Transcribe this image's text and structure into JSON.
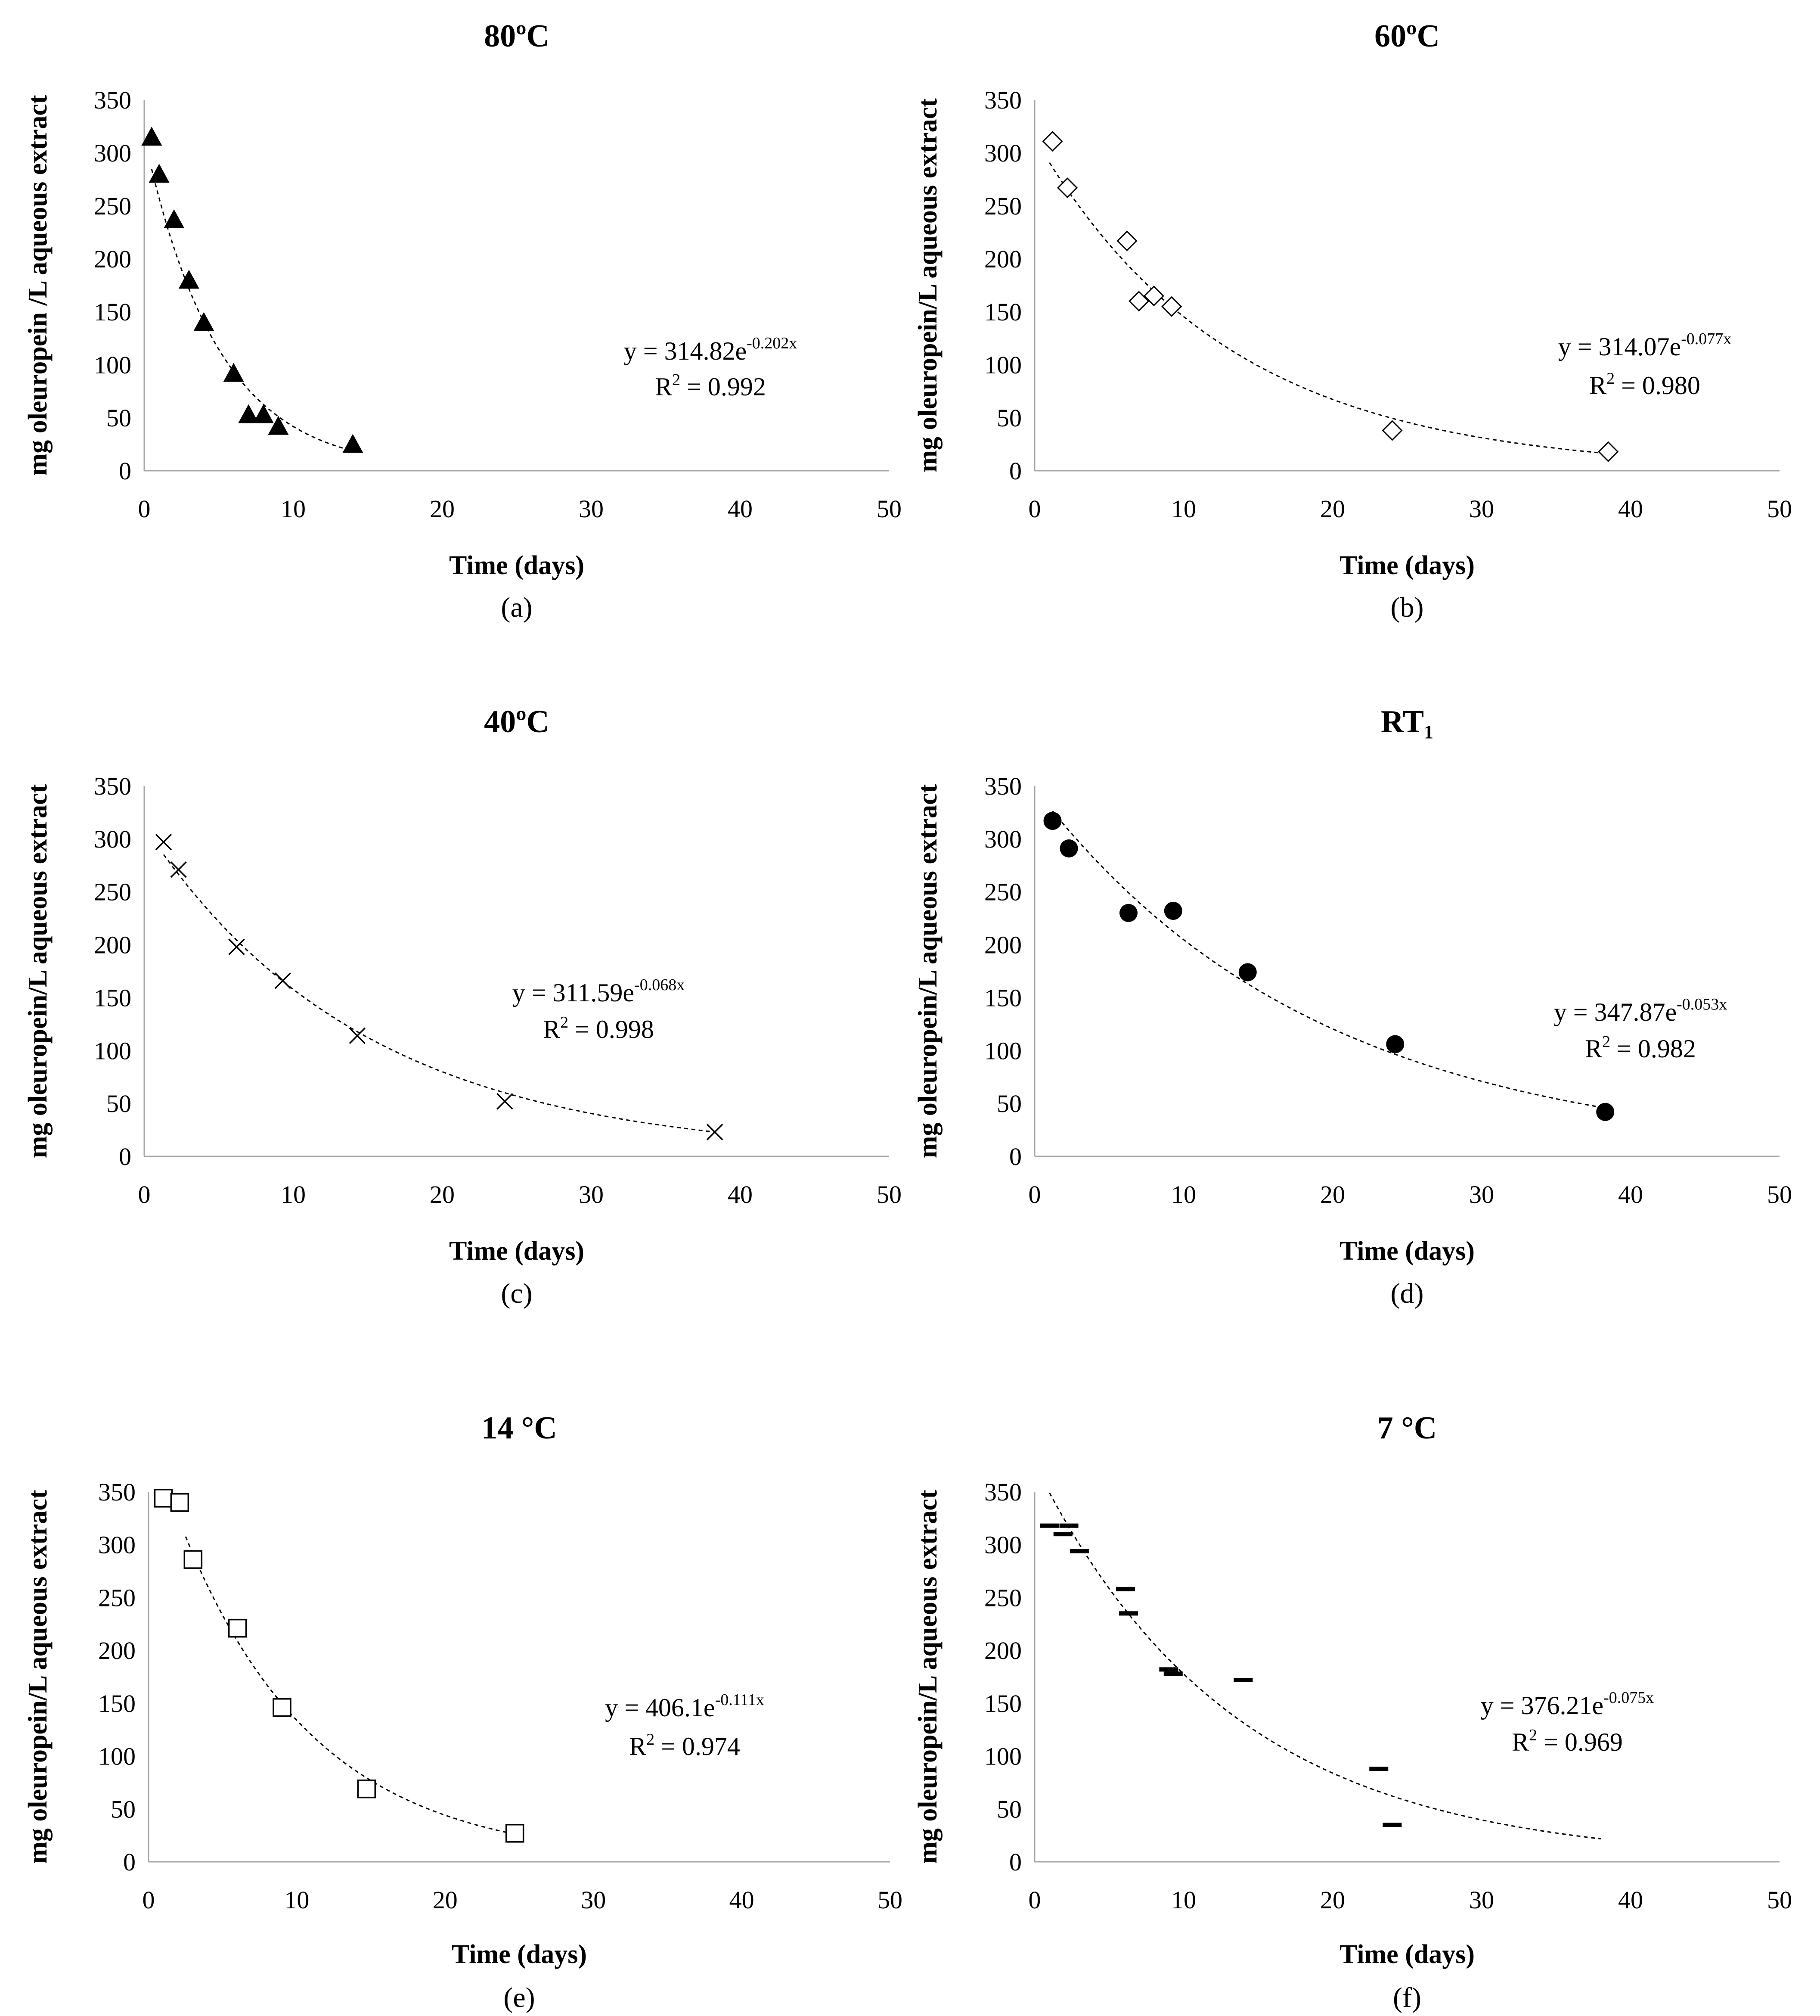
{
  "chart_data": [
    {
      "type": "scatter",
      "title": "80ºC",
      "panel_label": "(a)",
      "xlabel": "Time (days)",
      "ylabel": "mg oleuropein /L aqueous extract",
      "xlim": [
        0,
        50
      ],
      "ylim": [
        0,
        350
      ],
      "xticks": [
        "0",
        "10",
        "20",
        "30",
        "40",
        "50"
      ],
      "yticks": [
        "0",
        "50",
        "100",
        "150",
        "200",
        "250",
        "300",
        "350"
      ],
      "marker": "filled-triangle",
      "series": [
        {
          "x": [
            0.5,
            1,
            2,
            3,
            4,
            6,
            7,
            8,
            9,
            14
          ],
          "y": [
            315,
            280,
            237,
            180,
            140,
            92,
            53,
            53,
            42,
            25
          ]
        }
      ],
      "trendline": {
        "type": "exponential",
        "a": 314.82,
        "b": -0.202,
        "x_range": [
          0.5,
          14
        ]
      },
      "equation": {
        "lead": "y = 314.82e",
        "exp": "-0.202x",
        "r2_lead": "R",
        "r2_sup": "2",
        "r2_value": " = 0.992"
      }
    },
    {
      "type": "scatter",
      "title": "60ºC",
      "panel_label": "(b)",
      "xlabel": "Time (days)",
      "ylabel": "mg oleuropein/L aqueous extract",
      "xlim": [
        0,
        50
      ],
      "ylim": [
        0,
        350
      ],
      "xticks": [
        "0",
        "10",
        "20",
        "30",
        "40",
        "50"
      ],
      "yticks": [
        "0",
        "50",
        "100",
        "150",
        "200",
        "250",
        "300",
        "350"
      ],
      "marker": "open-diamond",
      "series": [
        {
          "x": [
            1.2,
            2.2,
            6.2,
            7,
            8,
            9.2,
            24,
            38.5
          ],
          "y": [
            311,
            267,
            217,
            160,
            165,
            155,
            38,
            18
          ]
        }
      ],
      "trendline": {
        "type": "exponential",
        "a": 314.07,
        "b": -0.077,
        "x_range": [
          1,
          38.5
        ]
      },
      "equation": {
        "lead": "y = 314.07e",
        "exp": "-0.077x",
        "r2_lead": "R",
        "r2_sup": "2",
        "r2_value": " = 0.980"
      }
    },
    {
      "type": "scatter",
      "title": "40ºC",
      "panel_label": "(c)",
      "xlabel": "Time (days)",
      "ylabel": "mg oleuropein/L aqueous extract",
      "xlim": [
        0,
        50
      ],
      "ylim": [
        0,
        350
      ],
      "xticks": [
        "0",
        "10",
        "20",
        "30",
        "40",
        "50"
      ],
      "yticks": [
        "0",
        "50",
        "100",
        "150",
        "200",
        "250",
        "300",
        "350"
      ],
      "marker": "cross",
      "series": [
        {
          "x": [
            1.3,
            2.3,
            6.2,
            9.3,
            14.3,
            24.2,
            38.3
          ],
          "y": [
            297,
            271,
            198,
            166,
            114,
            52,
            23
          ]
        }
      ],
      "trendline": {
        "type": "exponential",
        "a": 311.59,
        "b": -0.068,
        "x_range": [
          1.3,
          38.3
        ]
      },
      "equation": {
        "lead": "y = 311.59e",
        "exp": "-0.068x",
        "r2_lead": "R",
        "r2_sup": "2",
        "r2_value": " = 0.998"
      }
    },
    {
      "type": "scatter",
      "title_lead": "RT",
      "title_sub": "1",
      "panel_label": "(d)",
      "xlabel": "Time (days)",
      "ylabel": "mg oleuropein/L aqueous extract",
      "xlim": [
        0,
        50
      ],
      "ylim": [
        0,
        350
      ],
      "xticks": [
        "0",
        "10",
        "20",
        "30",
        "40",
        "50"
      ],
      "yticks": [
        "0",
        "50",
        "100",
        "150",
        "200",
        "250",
        "300",
        "350"
      ],
      "marker": "filled-circle",
      "series": [
        {
          "x": [
            1.2,
            2.3,
            6.3,
            9.3,
            14.3,
            24.2,
            38.3
          ],
          "y": [
            317,
            291,
            230,
            232,
            174,
            106,
            42
          ]
        }
      ],
      "trendline": {
        "type": "exponential",
        "a": 347.87,
        "b": -0.053,
        "x_range": [
          1.2,
          38.3
        ]
      },
      "equation": {
        "lead": "y = 347.87e",
        "exp": "-0.053x",
        "r2_lead": "R",
        "r2_sup": "2",
        "r2_value": " = 0.982"
      }
    },
    {
      "type": "scatter",
      "title": "14 °C",
      "panel_label": "(e)",
      "xlabel": "Time (days)",
      "ylabel": "mg oleuropein/L aqueous extract",
      "xlim": [
        0,
        50
      ],
      "ylim": [
        0,
        350
      ],
      "xticks": [
        "0",
        "10",
        "20",
        "30",
        "40",
        "50"
      ],
      "yticks": [
        "0",
        "50",
        "100",
        "150",
        "200",
        "250",
        "300",
        "350"
      ],
      "marker": "open-square",
      "series": [
        {
          "x": [
            1,
            2.1,
            3,
            6,
            9,
            14.7,
            24.7
          ],
          "y": [
            344,
            340,
            286,
            221,
            146,
            69,
            27
          ]
        }
      ],
      "trendline": {
        "type": "exponential",
        "a": 406.1,
        "b": -0.111,
        "x_range": [
          2.5,
          24.7
        ]
      },
      "equation": {
        "lead": "y = 406.1e",
        "exp": "-0.111x",
        "r2_lead": "R",
        "r2_sup": "2",
        "r2_value": " = 0.974"
      }
    },
    {
      "type": "scatter",
      "title": "7 °C",
      "panel_label": "(f)",
      "xlabel": "Time (days)",
      "ylabel": "mg oleuropein/L aqueous extract",
      "xlim": [
        0,
        50
      ],
      "ylim": [
        0,
        350
      ],
      "xticks": [
        "0",
        "10",
        "20",
        "30",
        "40",
        "50"
      ],
      "yticks": [
        "0",
        "50",
        "100",
        "150",
        "200",
        "250",
        "300",
        "350"
      ],
      "marker": "dash",
      "series": [
        {
          "x": [
            1,
            1.9,
            2.3,
            3,
            6.1,
            6.3,
            9,
            9.3,
            14,
            23.1,
            24
          ],
          "y": [
            318,
            310,
            318,
            294,
            258,
            235,
            182,
            178,
            172,
            88,
            35
          ]
        }
      ],
      "trendline": {
        "type": "exponential",
        "a": 376.21,
        "b": -0.075,
        "x_range": [
          1,
          38
        ]
      },
      "equation": {
        "lead": "y = 376.21e",
        "exp": "-0.075x",
        "r2_lead": "R",
        "r2_sup": "2",
        "r2_value": " = 0.969"
      }
    }
  ]
}
